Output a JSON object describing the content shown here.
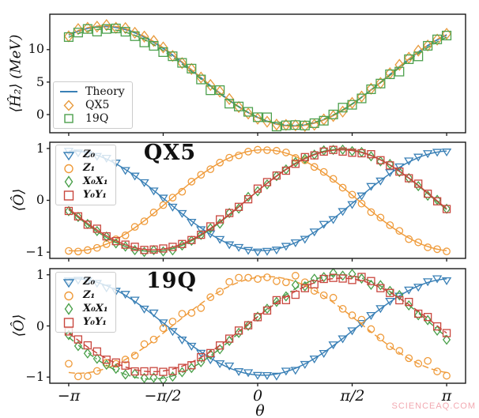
{
  "watermark": "SCIENCEAQ.COM",
  "palette": {
    "theory_blue": "#3a80b6",
    "qx5_orange": "#e89a3c",
    "q19_green": "#4da04d",
    "z0_blue": "#3a80b6",
    "z1_orange": "#ef9b3b",
    "xx_green": "#4aa04a",
    "yy_red": "#c9463d",
    "axis": "#1a1a1a",
    "watermark_pink": "#f2a9b1"
  },
  "x_axis": {
    "label": "θ",
    "range": [
      -3.456,
      3.456
    ],
    "ticks": [
      {
        "v": -3.14159,
        "label": "−π"
      },
      {
        "v": -1.5708,
        "label": "−π/2"
      },
      {
        "v": 0,
        "label": "0"
      },
      {
        "v": 1.5708,
        "label": "π/2"
      },
      {
        "v": 3.14159,
        "label": "π"
      }
    ]
  },
  "chart_data": [
    {
      "id": "energy-panel",
      "type": "line",
      "title": "",
      "ylabel": "⟨Ĥ₂⟩ (MeV)",
      "units": "MeV",
      "ylim": [
        -2.8,
        15.45
      ],
      "yticks": [
        {
          "v": 10,
          "label": "10"
        },
        {
          "v": 5,
          "label": "5"
        },
        {
          "v": 0,
          "label": "0"
        }
      ],
      "legend_location": "lower left",
      "n_markers": 41,
      "marker_size": 12,
      "series": [
        {
          "name": "Theory",
          "role": "theory-line",
          "marker": null,
          "line": "solid",
          "color": "#3a80b6",
          "model": {
            "c0": 5.907,
            "c1": -6.343,
            "c2": -4.287
          },
          "keypoints": {
            "−π": 12.25,
            "−π/2": 10.19,
            "0": -0.44,
            "π/2": 1.62,
            "π": 12.25
          },
          "min": {
            "theta": 0.59,
            "value": -1.75
          },
          "max": {
            "theta": -2.55,
            "value": 13.56
          }
        },
        {
          "name": "QX5",
          "marker": "diamond",
          "line": "dashed",
          "color": "#e89a3c",
          "model": {
            "c0": 5.95,
            "c1": -6.4,
            "c2": -4.35
          },
          "noise_sd": 0.18,
          "seed": 7,
          "keypoints": {
            "−π": 12.35,
            "−π/2": 10.3,
            "0": -0.45,
            "π/2": 1.6,
            "π": 12.35
          }
        },
        {
          "name": "19Q",
          "marker": "square",
          "line": "dashed",
          "color": "#4da04d",
          "model": {
            "c0": 5.75,
            "c1": -6.15,
            "c2": -4.1
          },
          "noise_sd": 0.45,
          "seed": 11,
          "keypoints": {
            "−π": 11.9,
            "−π/2": 9.85,
            "0": -0.4,
            "π/2": 1.65,
            "π": 11.9
          }
        }
      ]
    },
    {
      "id": "qx5-panel",
      "type": "line",
      "title": "QX5",
      "ylabel": "⟨Ô⟩",
      "ylim": [
        -1.12,
        1.12
      ],
      "yticks": [
        {
          "v": 1,
          "label": "1"
        },
        {
          "v": 0,
          "label": "0"
        },
        {
          "v": -1,
          "label": "−1"
        }
      ],
      "legend_location": "upper left",
      "n_markers": 41,
      "marker_size": 10,
      "series": [
        {
          "name": "Z₀",
          "marker": "triangle-down",
          "line": "solid",
          "color": "#3a80b6",
          "model": {
            "c0": -0.01,
            "c1": -0.96,
            "c2": -0.05
          },
          "noise_sd": 0.02,
          "seed": 13,
          "keypoints": {
            "−π": 0.95,
            "−π/2": 0.04,
            "0": -0.97,
            "π/2": -0.06,
            "π": 0.95
          }
        },
        {
          "name": "Z₁",
          "marker": "circle",
          "line": "solid",
          "color": "#ef9b3b",
          "model": {
            "c0": 0.0,
            "c1": 0.97,
            "c2": 0.1
          },
          "noise_sd": 0.025,
          "seed": 17,
          "keypoints": {
            "−π": -0.97,
            "−π/2": -0.1,
            "0": 0.97,
            "π/2": 0.1,
            "π": -0.97
          }
        },
        {
          "name": "X₀X₁",
          "marker": "diamond",
          "line": "solid",
          "color": "#4aa04a",
          "model": {
            "c0": 0.0,
            "c1": 0.18,
            "c2": 0.97
          },
          "noise_sd": 0.025,
          "seed": 19,
          "keypoints": {
            "−π": -0.18,
            "−π/2": -0.97,
            "0": 0.18,
            "π/2": 0.97,
            "π": -0.18
          }
        },
        {
          "name": "Y₀Y₁",
          "marker": "square",
          "line": "solid",
          "color": "#c9463d",
          "model": {
            "c0": 0.01,
            "c1": 0.17,
            "c2": 0.95
          },
          "noise_sd": 0.03,
          "seed": 23,
          "keypoints": {
            "−π": -0.16,
            "−π/2": -0.94,
            "0": 0.18,
            "π/2": 0.96,
            "π": -0.16
          }
        }
      ]
    },
    {
      "id": "19q-panel",
      "type": "line",
      "title": "19Q",
      "ylabel": "⟨Ô⟩",
      "ylim": [
        -1.12,
        1.12
      ],
      "yticks": [
        {
          "v": 1,
          "label": "1"
        },
        {
          "v": 0,
          "label": "0"
        },
        {
          "v": -1,
          "label": "−1"
        }
      ],
      "legend_location": "upper left",
      "n_markers": 41,
      "marker_size": 10,
      "series": [
        {
          "name": "Z₀",
          "marker": "triangle-down",
          "line": "solid",
          "color": "#3a80b6",
          "model": {
            "c0": -0.02,
            "c1": -0.94,
            "c2": -0.08
          },
          "noise_sd": 0.035,
          "seed": 29,
          "keypoints": {
            "−π": 0.92,
            "−π/2": 0.06,
            "0": -0.96,
            "π/2": -0.1,
            "π": 0.92
          }
        },
        {
          "name": "Z₁",
          "marker": "circle",
          "line": "dashed",
          "color": "#ef9b3b",
          "model": {
            "c0": 0.02,
            "c1": 0.93,
            "c2": 0.16
          },
          "noise_sd": 0.075,
          "seed": 31,
          "noise_edge_boost": 1.5,
          "keypoints": {
            "−π": -0.91,
            "−π/2": -0.14,
            "0": 0.95,
            "π/2": 0.18,
            "π": -0.91
          }
        },
        {
          "name": "X₀X₁",
          "marker": "diamond",
          "line": "dashdot",
          "color": "#4aa04a",
          "model": {
            "c0": -0.02,
            "c1": 0.2,
            "c2": 1.0
          },
          "noise_sd": 0.045,
          "seed": 37,
          "keypoints": {
            "−π": -0.22,
            "−π/2": -1.02,
            "0": 0.18,
            "π/2": 0.98,
            "π": -0.22
          }
        },
        {
          "name": "Y₀Y₁",
          "marker": "square",
          "line": "dashed",
          "color": "#c9463d",
          "model": {
            "c0": 0.02,
            "c1": 0.16,
            "c2": 0.9
          },
          "noise_sd": 0.05,
          "seed": 41,
          "keypoints": {
            "−π": -0.14,
            "−π/2": -0.88,
            "0": 0.18,
            "π/2": 0.92,
            "π": -0.14
          }
        }
      ]
    }
  ]
}
